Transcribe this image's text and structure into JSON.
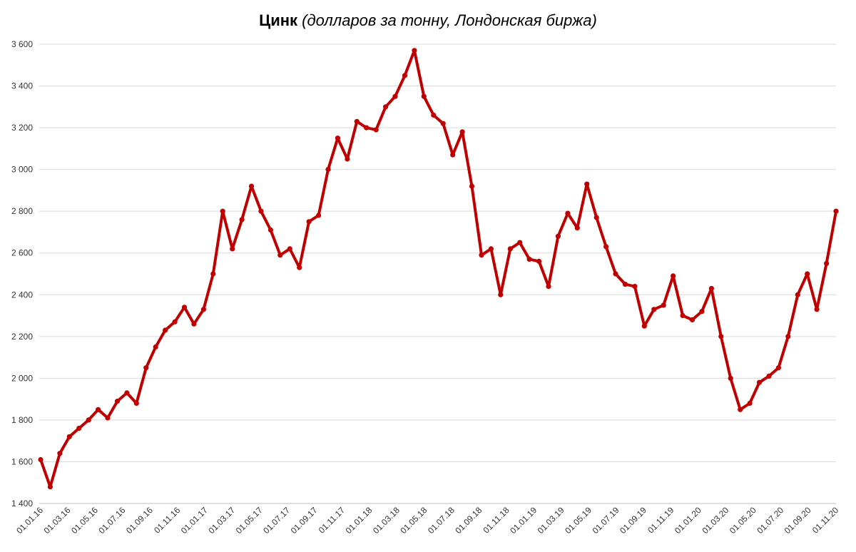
{
  "title_main": "Цинк",
  "title_rest": " (долларов за тонну, Лондонская биржа)",
  "chart_data": {
    "type": "line",
    "title": "Цинк (долларов за тонну, Лондонская биржа)",
    "ylim": [
      1400,
      3600
    ],
    "yticks": [
      1400,
      1600,
      1800,
      2000,
      2200,
      2400,
      2600,
      2800,
      3000,
      3200,
      3400,
      3600
    ],
    "ytick_labels": [
      "1 400",
      "1 600",
      "1 800",
      "2 000",
      "2 200",
      "2 400",
      "2 600",
      "2 800",
      "3 000",
      "3 200",
      "3 400",
      "3 600"
    ],
    "xticks": [
      "01.01.16",
      "01.03.16",
      "01.05.16",
      "01.07.16",
      "01.09.16",
      "01.11.16",
      "01.01.17",
      "01.03.17",
      "01.05.17",
      "01.07.17",
      "01.09.17",
      "01.11.17",
      "01.01.18",
      "01.03.18",
      "01.05.18",
      "01.07.18",
      "01.09.18",
      "01.11.18",
      "01.01.19",
      "01.03.19",
      "01.05.19",
      "01.07.19",
      "01.09.19",
      "01.11.19",
      "01.01.20",
      "01.03.20",
      "01.05.20",
      "01.07.20",
      "01.09.20",
      "01.11.20"
    ],
    "grid": true,
    "legend": "none",
    "color": "#c00000",
    "series": [
      {
        "values": [
          1610,
          1480,
          1640,
          1720,
          1760,
          1800,
          1850,
          1810,
          1890,
          1930,
          1880,
          2050,
          2150,
          2230,
          2270,
          2340,
          2260,
          2330,
          2500,
          2800,
          2620,
          2760,
          2920,
          2800,
          2710,
          2590,
          2620,
          2530,
          2750,
          2780,
          3000,
          3150,
          3050,
          3230,
          3200,
          3190,
          3300,
          3350,
          3450,
          3570,
          3350,
          3260,
          3220,
          3070,
          3180,
          2920,
          2590,
          2620,
          2400,
          2620,
          2650,
          2570,
          2560,
          2440,
          2680,
          2790,
          2720,
          2930,
          2770,
          2630,
          2500,
          2450,
          2440,
          2250,
          2330,
          2350,
          2490,
          2300,
          2280,
          2320,
          2430,
          2200,
          2000,
          1850,
          1880,
          1980,
          2010,
          2050,
          2200,
          2400,
          2500,
          2330,
          2550,
          2800
        ]
      }
    ]
  }
}
